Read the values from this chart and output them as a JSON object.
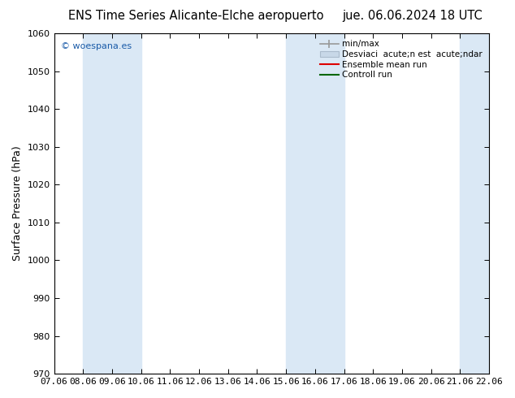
{
  "title_left": "ENS Time Series Alicante-Elche aeropuerto",
  "title_right": "jue. 06.06.2024 18 UTC",
  "ylabel": "Surface Pressure (hPa)",
  "ylim": [
    970,
    1060
  ],
  "yticks": [
    970,
    980,
    990,
    1000,
    1010,
    1020,
    1030,
    1040,
    1050,
    1060
  ],
  "xtick_labels": [
    "07.06",
    "08.06",
    "09.06",
    "10.06",
    "11.06",
    "12.06",
    "13.06",
    "14.06",
    "15.06",
    "16.06",
    "17.06",
    "18.06",
    "19.06",
    "20.06",
    "21.06",
    "22.06"
  ],
  "xtick_positions": [
    0,
    1,
    2,
    3,
    4,
    5,
    6,
    7,
    8,
    9,
    10,
    11,
    12,
    13,
    14,
    15
  ],
  "shade_bands": [
    {
      "start": 1,
      "end": 3
    },
    {
      "start": 8,
      "end": 10
    },
    {
      "start": 14,
      "end": 15
    }
  ],
  "shade_color": "#dae8f5",
  "background_color": "#ffffff",
  "watermark_text": "© woespana.es",
  "watermark_color": "#1a5ba8",
  "legend_minmax_label": "min/max",
  "legend_std_label": "Desviaci  acute;n est  acute;ndar",
  "legend_ens_label": "Ensemble mean run",
  "legend_ctrl_label": "Controll run",
  "legend_ens_color": "#dd0000",
  "legend_ctrl_color": "#006600",
  "legend_minmax_color": "#999999",
  "legend_std_color": "#bbccdd",
  "title_fontsize": 10.5,
  "axis_label_fontsize": 9,
  "tick_fontsize": 8,
  "watermark_fontsize": 8,
  "legend_fontsize": 7.5,
  "fig_width": 6.34,
  "fig_height": 4.9,
  "dpi": 100
}
